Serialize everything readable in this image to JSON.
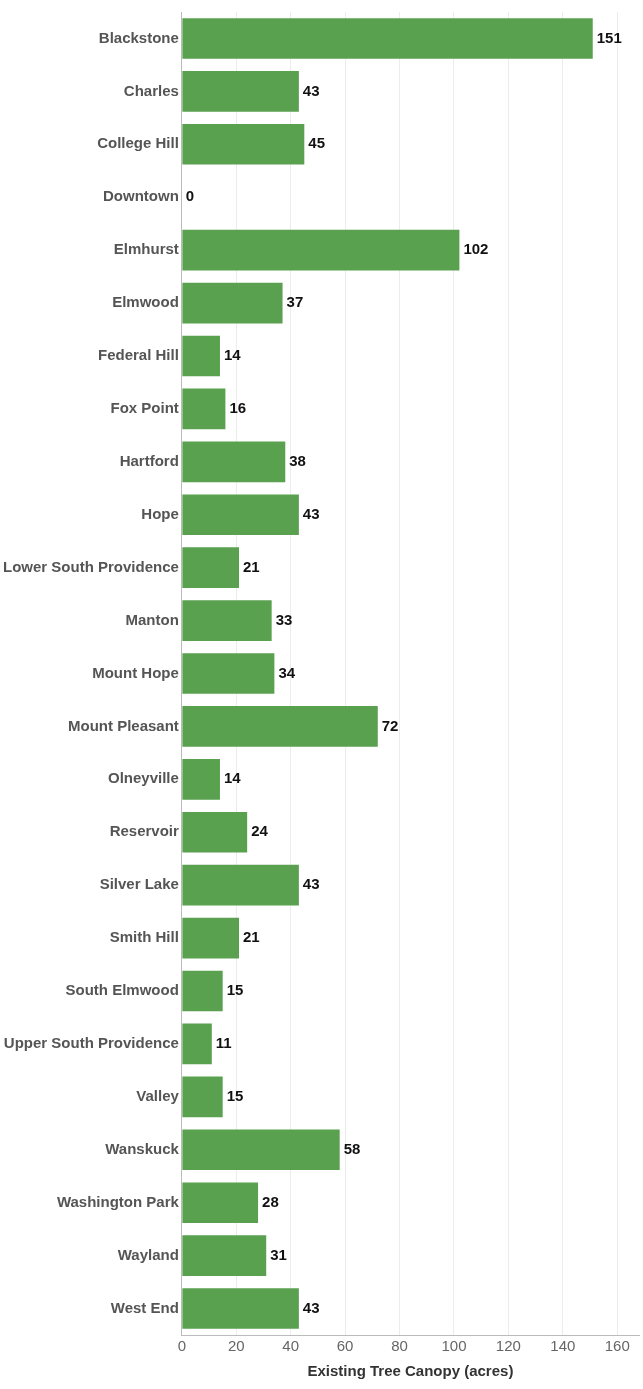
{
  "chart_data": {
    "type": "bar",
    "orientation": "horizontal",
    "xlabel": "Existing Tree Canopy (acres)",
    "categories": [
      "Blackstone",
      "Charles",
      "College Hill",
      "Downtown",
      "Elmhurst",
      "Elmwood",
      "Federal Hill",
      "Fox Point",
      "Hartford",
      "Hope",
      "Lower South Providence",
      "Manton",
      "Mount Hope",
      "Mount Pleasant",
      "Olneyville",
      "Reservoir",
      "Silver Lake",
      "Smith Hill",
      "South Elmwood",
      "Upper South Providence",
      "Valley",
      "Wanskuck",
      "Washington Park",
      "Wayland",
      "West End"
    ],
    "values": [
      151,
      43,
      45,
      0,
      102,
      37,
      14,
      16,
      38,
      43,
      21,
      33,
      34,
      72,
      14,
      24,
      43,
      21,
      15,
      11,
      15,
      58,
      28,
      31,
      43
    ],
    "color": "#59a14f",
    "xlim": [
      0,
      168
    ],
    "xticks": [
      0,
      20,
      40,
      60,
      80,
      100,
      120,
      140,
      160
    ],
    "grid": "x",
    "data_labels": true,
    "legend": false
  }
}
